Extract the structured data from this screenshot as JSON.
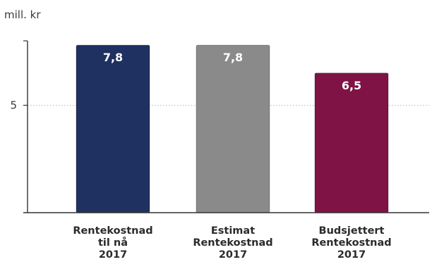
{
  "chart_data": {
    "type": "bar",
    "unit_label": "mill. kr",
    "categories": [
      [
        "Rentekostnad",
        "til nå",
        "2017"
      ],
      [
        "Estimat",
        "Rentekostnad",
        "2017"
      ],
      [
        "Budsjettert",
        "Rentekostnad",
        "2017"
      ]
    ],
    "values": [
      7.8,
      7.8,
      6.5
    ],
    "data_labels": [
      "7,8",
      "7,8",
      "6,5"
    ],
    "bar_colors": [
      "#1f3160",
      "#8a8a8a",
      "#7f1346"
    ],
    "y_ticks": [
      5
    ],
    "y_tick_labels": [
      "5"
    ],
    "ylim": [
      0,
      8
    ],
    "grid": "dotted horizontal at tick",
    "legend": "none"
  }
}
